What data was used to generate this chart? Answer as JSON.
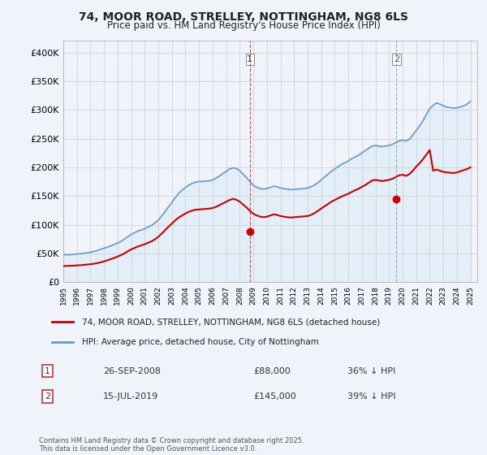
{
  "title": "74, MOOR ROAD, STRELLEY, NOTTINGHAM, NG8 6LS",
  "subtitle": "Price paid vs. HM Land Registry's House Price Index (HPI)",
  "ylabel_ticks": [
    "£0",
    "£50K",
    "£100K",
    "£150K",
    "£200K",
    "£250K",
    "£300K",
    "£350K",
    "£400K"
  ],
  "ylim": [
    0,
    420000
  ],
  "xlim_start": 1995.0,
  "xlim_end": 2025.5,
  "legend_line1": "74, MOOR ROAD, STRELLEY, NOTTINGHAM, NG8 6LS (detached house)",
  "legend_line2": "HPI: Average price, detached house, City of Nottingham",
  "transaction1_label": "1",
  "transaction1_date": "26-SEP-2008",
  "transaction1_price": "£88,000",
  "transaction1_hpi": "36% ↓ HPI",
  "transaction1_year": 2008.74,
  "transaction1_price_val": 88000,
  "transaction2_label": "2",
  "transaction2_date": "15-JUL-2019",
  "transaction2_price": "£145,000",
  "transaction2_hpi": "39% ↓ HPI",
  "transaction2_year": 2019.54,
  "transaction2_price_val": 145000,
  "red_color": "#cc0000",
  "blue_color": "#6699cc",
  "blue_fill": "#d0e4f7",
  "footnote": "Contains HM Land Registry data © Crown copyright and database right 2025.\nThis data is licensed under the Open Government Licence v3.0.",
  "background_color": "#f0f4fa",
  "plot_bg": "#ffffff",
  "hpi_data_x": [
    1995.0,
    1995.25,
    1995.5,
    1995.75,
    1996.0,
    1996.25,
    1996.5,
    1996.75,
    1997.0,
    1997.25,
    1997.5,
    1997.75,
    1998.0,
    1998.25,
    1998.5,
    1998.75,
    1999.0,
    1999.25,
    1999.5,
    1999.75,
    2000.0,
    2000.25,
    2000.5,
    2000.75,
    2001.0,
    2001.25,
    2001.5,
    2001.75,
    2002.0,
    2002.25,
    2002.5,
    2002.75,
    2003.0,
    2003.25,
    2003.5,
    2003.75,
    2004.0,
    2004.25,
    2004.5,
    2004.75,
    2005.0,
    2005.25,
    2005.5,
    2005.75,
    2006.0,
    2006.25,
    2006.5,
    2006.75,
    2007.0,
    2007.25,
    2007.5,
    2007.75,
    2008.0,
    2008.25,
    2008.5,
    2008.75,
    2009.0,
    2009.25,
    2009.5,
    2009.75,
    2010.0,
    2010.25,
    2010.5,
    2010.75,
    2011.0,
    2011.25,
    2011.5,
    2011.75,
    2012.0,
    2012.25,
    2012.5,
    2012.75,
    2013.0,
    2013.25,
    2013.5,
    2013.75,
    2014.0,
    2014.25,
    2014.5,
    2014.75,
    2015.0,
    2015.25,
    2015.5,
    2015.75,
    2016.0,
    2016.25,
    2016.5,
    2016.75,
    2017.0,
    2017.25,
    2017.5,
    2017.75,
    2018.0,
    2018.25,
    2018.5,
    2018.75,
    2019.0,
    2019.25,
    2019.5,
    2019.75,
    2020.0,
    2020.25,
    2020.5,
    2020.75,
    2021.0,
    2021.25,
    2021.5,
    2021.75,
    2022.0,
    2022.25,
    2022.5,
    2022.75,
    2023.0,
    2023.25,
    2023.5,
    2023.75,
    2024.0,
    2024.25,
    2024.5,
    2024.75,
    2025.0
  ],
  "hpi_data_y": [
    48000,
    47500,
    47800,
    48200,
    49000,
    49500,
    50200,
    51000,
    52000,
    53500,
    55000,
    57000,
    59000,
    61000,
    63000,
    65500,
    68000,
    71000,
    75000,
    79000,
    83000,
    86000,
    89000,
    91000,
    93000,
    96000,
    99000,
    103000,
    108000,
    115000,
    123000,
    131000,
    139000,
    147000,
    155000,
    160000,
    165000,
    169000,
    172000,
    174000,
    175000,
    175500,
    176000,
    176500,
    178000,
    181000,
    185000,
    189000,
    193000,
    197000,
    199000,
    198000,
    194000,
    188000,
    182000,
    175000,
    169000,
    165000,
    163000,
    162000,
    163000,
    165000,
    167000,
    166000,
    164000,
    163000,
    162000,
    161000,
    161500,
    162000,
    162500,
    163000,
    164000,
    166000,
    169000,
    173000,
    178000,
    183000,
    188000,
    193000,
    197000,
    201000,
    205000,
    208000,
    211000,
    215000,
    218000,
    221000,
    225000,
    229000,
    233000,
    237000,
    238000,
    237000,
    236000,
    237000,
    238000,
    240000,
    243000,
    246000,
    247000,
    246000,
    249000,
    256000,
    264000,
    272000,
    281000,
    292000,
    302000,
    308000,
    312000,
    310000,
    307000,
    305000,
    304000,
    303000,
    303500,
    305000,
    307000,
    310000,
    315000
  ],
  "red_data_x": [
    1995.0,
    1995.25,
    1995.5,
    1995.75,
    1996.0,
    1996.25,
    1996.5,
    1996.75,
    1997.0,
    1997.25,
    1997.5,
    1997.75,
    1998.0,
    1998.25,
    1998.5,
    1998.75,
    1999.0,
    1999.25,
    1999.5,
    1999.75,
    2000.0,
    2000.25,
    2000.5,
    2000.75,
    2001.0,
    2001.25,
    2001.5,
    2001.75,
    2002.0,
    2002.25,
    2002.5,
    2002.75,
    2003.0,
    2003.25,
    2003.5,
    2003.75,
    2004.0,
    2004.25,
    2004.5,
    2004.75,
    2005.0,
    2005.25,
    2005.5,
    2005.75,
    2006.0,
    2006.25,
    2006.5,
    2006.75,
    2007.0,
    2007.25,
    2007.5,
    2007.75,
    2008.0,
    2008.25,
    2008.5,
    2008.75,
    2009.0,
    2009.25,
    2009.5,
    2009.75,
    2010.0,
    2010.25,
    2010.5,
    2010.75,
    2011.0,
    2011.25,
    2011.5,
    2011.75,
    2012.0,
    2012.25,
    2012.5,
    2012.75,
    2013.0,
    2013.25,
    2013.5,
    2013.75,
    2014.0,
    2014.25,
    2014.5,
    2014.75,
    2015.0,
    2015.25,
    2015.5,
    2015.75,
    2016.0,
    2016.25,
    2016.5,
    2016.75,
    2017.0,
    2017.25,
    2017.5,
    2017.75,
    2018.0,
    2018.25,
    2018.5,
    2018.75,
    2019.0,
    2019.25,
    2019.5,
    2019.75,
    2020.0,
    2020.25,
    2020.5,
    2020.75,
    2021.0,
    2021.25,
    2021.5,
    2021.75,
    2022.0,
    2022.25,
    2022.5,
    2022.75,
    2023.0,
    2023.25,
    2023.5,
    2023.75,
    2024.0,
    2024.25,
    2024.5,
    2024.75,
    2025.0
  ],
  "red_data_y": [
    28000,
    28200,
    28400,
    28700,
    29000,
    29500,
    30000,
    30500,
    31200,
    32000,
    33000,
    34500,
    36000,
    38000,
    40000,
    42000,
    44500,
    47000,
    50000,
    53500,
    57000,
    59500,
    62000,
    64000,
    66000,
    68500,
    71000,
    74500,
    79000,
    84500,
    90500,
    96500,
    102000,
    107500,
    112500,
    116000,
    119500,
    122500,
    124500,
    126000,
    126500,
    127000,
    127500,
    128000,
    129000,
    131000,
    134000,
    137000,
    140000,
    143000,
    145000,
    143500,
    140000,
    135000,
    130000,
    124000,
    119000,
    116000,
    114000,
    113000,
    114000,
    116000,
    118000,
    117000,
    115000,
    114000,
    113000,
    112500,
    113000,
    113500,
    114000,
    114500,
    115000,
    117000,
    120000,
    124000,
    128000,
    132000,
    136000,
    140000,
    143000,
    146000,
    149000,
    151500,
    154000,
    157000,
    160000,
    162500,
    166000,
    169000,
    173000,
    177000,
    178000,
    177000,
    176000,
    177000,
    178000,
    180000,
    183000,
    186000,
    187000,
    185000,
    188000,
    194000,
    201000,
    207000,
    214000,
    222000,
    230000,
    194000,
    196000,
    194000,
    192000,
    191000,
    190500,
    190000,
    191000,
    193000,
    195000,
    197000,
    200000
  ]
}
